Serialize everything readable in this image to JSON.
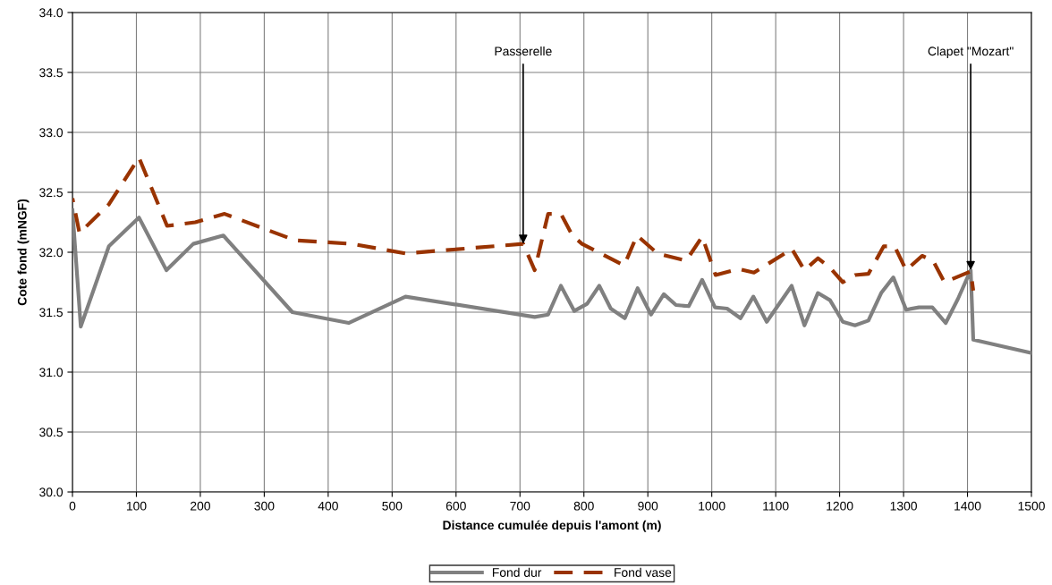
{
  "chart_data": {
    "type": "line",
    "xlabel": "Distance cumulée depuis l'amont (m)",
    "ylabel": "Cote fond (mNGF)",
    "xlim": [
      0,
      1500
    ],
    "xticks": [
      0,
      100,
      200,
      300,
      400,
      500,
      600,
      700,
      800,
      900,
      1000,
      1100,
      1200,
      1300,
      1400,
      1500
    ],
    "ylim": [
      30.0,
      34.0
    ],
    "yticks": [
      {
        "value": 30.0,
        "label": "30.0"
      },
      {
        "value": 30.5,
        "label": "30.5"
      },
      {
        "value": 31.0,
        "label": "31.0"
      },
      {
        "value": 31.5,
        "label": "31.5"
      },
      {
        "value": 32.0,
        "label": "32.0"
      },
      {
        "value": 32.5,
        "label": "32.5"
      },
      {
        "value": 33.0,
        "label": "33.0"
      },
      {
        "value": 33.5,
        "label": "33.5"
      },
      {
        "value": 34.0,
        "label": "34.0"
      }
    ],
    "grid": true,
    "legend": "bottom",
    "marker": "none",
    "series": [
      {
        "name": "Fond dur",
        "color": "#808080",
        "line_style": "solid",
        "x": [
          0,
          13,
          57,
          104,
          147,
          189,
          236,
          344,
          432,
          521,
          723,
          744,
          764,
          785,
          805,
          824,
          842,
          864,
          884,
          905,
          925,
          944,
          964,
          985,
          1005,
          1024,
          1045,
          1065,
          1086,
          1125,
          1145,
          1166,
          1185,
          1205,
          1224,
          1245,
          1265,
          1284,
          1304,
          1324,
          1345,
          1366,
          1385,
          1405,
          1409,
          1500
        ],
        "values": [
          32.35,
          31.38,
          32.05,
          32.29,
          31.85,
          32.07,
          32.14,
          31.5,
          31.41,
          31.63,
          31.46,
          31.48,
          31.72,
          31.51,
          31.57,
          31.72,
          31.53,
          31.45,
          31.7,
          31.48,
          31.65,
          31.56,
          31.55,
          31.77,
          31.54,
          31.53,
          31.45,
          31.63,
          31.42,
          31.72,
          31.39,
          31.66,
          31.6,
          31.42,
          31.39,
          31.43,
          31.66,
          31.79,
          31.52,
          31.54,
          31.54,
          31.41,
          31.61,
          31.85,
          31.27,
          31.16
        ]
      },
      {
        "name": "Fond vase",
        "color": "#993300",
        "line_style": "dashed",
        "x": [
          0,
          11,
          57,
          104,
          148,
          192,
          238,
          348,
          437,
          521,
          705,
          723,
          744,
          764,
          782,
          797,
          863,
          883,
          915,
          960,
          985,
          1006,
          1042,
          1066,
          1111,
          1125,
          1145,
          1166,
          1185,
          1205,
          1224,
          1245,
          1269,
          1286,
          1304,
          1329,
          1346,
          1364,
          1405,
          1409
        ],
        "values": [
          32.45,
          32.16,
          32.4,
          32.79,
          32.22,
          32.25,
          32.32,
          32.1,
          32.07,
          31.99,
          32.07,
          31.85,
          32.32,
          32.32,
          32.14,
          32.07,
          31.89,
          32.14,
          31.99,
          31.93,
          32.13,
          31.81,
          31.86,
          31.83,
          31.98,
          32.03,
          31.85,
          31.95,
          31.87,
          31.75,
          31.81,
          31.82,
          32.05,
          32.05,
          31.85,
          31.97,
          31.93,
          31.75,
          31.84,
          31.68
        ]
      }
    ],
    "annotations": [
      {
        "text": "Passerelle",
        "x": 705,
        "y": 32.07
      },
      {
        "text": "Clapet \"Mozart\"",
        "x": 1405,
        "y": 31.85
      }
    ]
  }
}
